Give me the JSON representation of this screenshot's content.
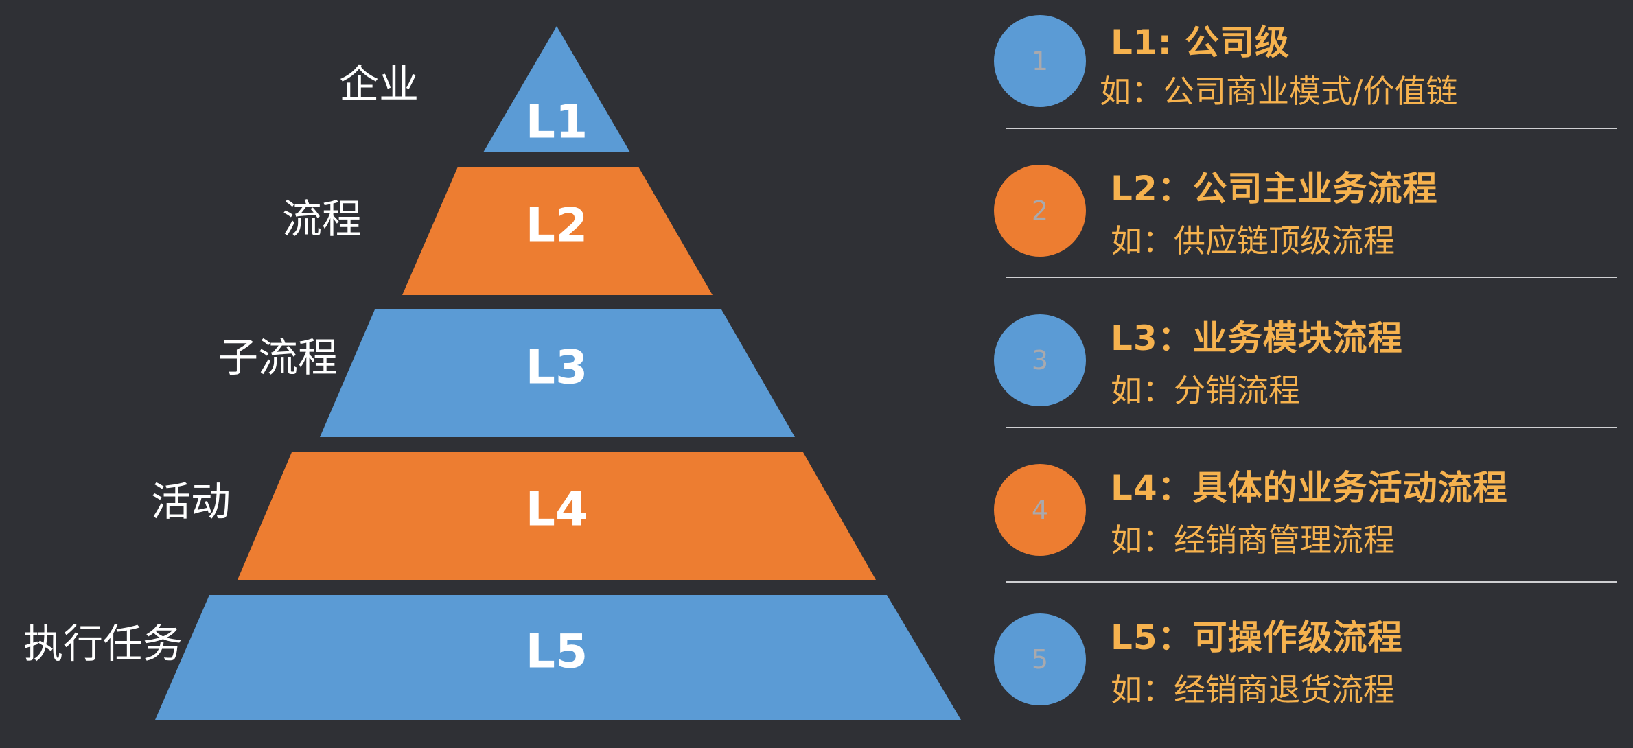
{
  "colors": {
    "background": "#2f3035",
    "blue": "#5b9bd5",
    "orange": "#ed7d31",
    "title": "#f6b24e",
    "example": "#f6b24e"
  },
  "pyramid": [
    {
      "code": "L1",
      "name": "企业",
      "color": "blue"
    },
    {
      "code": "L2",
      "name": "流程",
      "color": "orange"
    },
    {
      "code": "L3",
      "name": "子流程",
      "color": "blue"
    },
    {
      "code": "L4",
      "name": "活动",
      "color": "orange"
    },
    {
      "code": "L5",
      "name": "执行任务",
      "color": "blue"
    }
  ],
  "legend": [
    {
      "number": "1",
      "title": "L1: 公司级",
      "example": "如：公司商业模式/价值链",
      "color": "blue"
    },
    {
      "number": "2",
      "title": "L2：公司主业务流程",
      "example": "如：供应链顶级流程",
      "color": "orange"
    },
    {
      "number": "3",
      "title": "L3：业务模块流程",
      "example": "如：分销流程",
      "color": "blue"
    },
    {
      "number": "4",
      "title": "L4：具体的业务活动流程",
      "example": "如：经销商管理流程",
      "color": "orange"
    },
    {
      "number": "5",
      "title": "L5：可操作级流程",
      "example": "如：经销商退货流程",
      "color": "blue"
    }
  ]
}
